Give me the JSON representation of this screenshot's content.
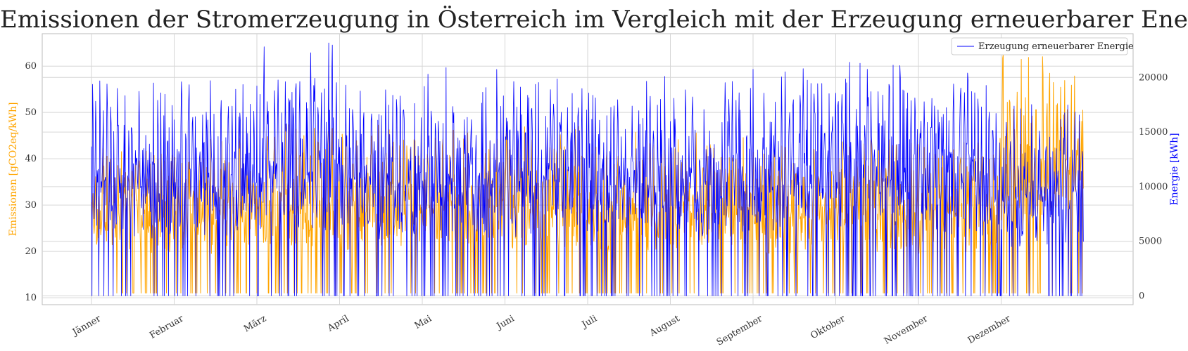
{
  "chart_data": {
    "type": "line",
    "title": "Emissionen der Stromerzeugung in Österreich im Vergleich mit der Erzeugung erneuerbarer Energie",
    "ylabel_left": "Emissionen [gCO2eq/kWh]",
    "ylabel_right": "Energie [kWh]",
    "x_ticks": [
      "Jänner",
      "Februar",
      "März",
      "April",
      "Mai",
      "Juni",
      "Juli",
      "August",
      "September",
      "Oktober",
      "November",
      "Dezember"
    ],
    "y_left_ticks": [
      10,
      20,
      30,
      40,
      50,
      60
    ],
    "y_right_ticks": [
      0,
      5000,
      10000,
      15000,
      20000
    ],
    "ylim_left": [
      8.5,
      67
    ],
    "ylim_right": [
      -800,
      24000
    ],
    "grid": true,
    "legend_position": "top-right",
    "colors": {
      "emissions": "#FFA500",
      "renewables": "#0000FF"
    },
    "series": [
      {
        "axis": "left",
        "color": "#FFA500",
        "values_monthly_approx": [
          {
            "month": "Jänner",
            "min": 11,
            "max": 44
          },
          {
            "month": "Februar",
            "min": 11,
            "max": 45
          },
          {
            "month": "März",
            "min": 11,
            "max": 48
          },
          {
            "month": "April",
            "min": 11,
            "max": 48
          },
          {
            "month": "Mai",
            "min": 11,
            "max": 48
          },
          {
            "month": "Juni",
            "min": 11,
            "max": 48
          },
          {
            "month": "Juli",
            "min": 11,
            "max": 46
          },
          {
            "month": "August",
            "min": 11,
            "max": 46
          },
          {
            "month": "September",
            "min": 11,
            "max": 44
          },
          {
            "month": "Oktober",
            "min": 11,
            "max": 45
          },
          {
            "month": "November",
            "min": 11,
            "max": 45
          },
          {
            "month": "Dezember",
            "min": 11,
            "max": 64
          }
        ]
      },
      {
        "name": "Erzeugung erneuerbarer Energie",
        "axis": "right",
        "color": "#0000FF",
        "values_monthly_approx": [
          {
            "month": "Jänner",
            "min": 0,
            "max": 20000
          },
          {
            "month": "Februar",
            "min": 0,
            "max": 20500
          },
          {
            "month": "März",
            "min": 0,
            "max": 23500
          },
          {
            "month": "April",
            "min": 0,
            "max": 20000
          },
          {
            "month": "Mai",
            "min": 0,
            "max": 21000
          },
          {
            "month": "Juni",
            "min": 0,
            "max": 21500
          },
          {
            "month": "Juli",
            "min": 0,
            "max": 20500
          },
          {
            "month": "August",
            "min": 0,
            "max": 20500
          },
          {
            "month": "September",
            "min": 0,
            "max": 21500
          },
          {
            "month": "Oktober",
            "min": 0,
            "max": 23200
          },
          {
            "month": "November",
            "min": 0,
            "max": 21500
          },
          {
            "month": "Dezember",
            "min": 0,
            "max": 18000
          }
        ]
      }
    ]
  }
}
